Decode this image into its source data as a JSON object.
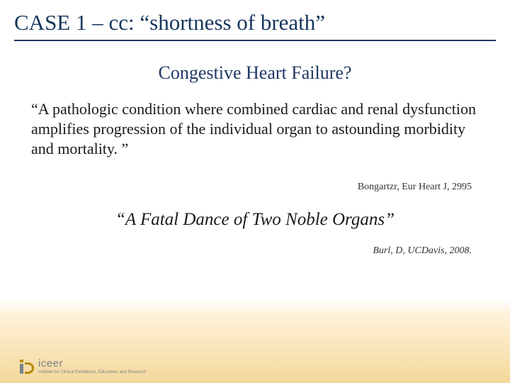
{
  "title": "CASE  1 – cc:  “shortness of breath”",
  "subtitle": "Congestive Heart Failure?",
  "quote1": "“A pathologic condition where combined cardiac and renal dysfunction amplifies progression of the individual organ to astounding morbidity and mortality. ”",
  "citation1": "Bongartzr, Eur Heart J, 2995",
  "quote2": "“A  Fatal Dance of Two Noble Organs”",
  "citation2": "Burl, D, UCDavis, 2008.",
  "logo": {
    "name": "iceer",
    "tagline": "Institute for Clinical Excellence, Education, and Research"
  },
  "colors": {
    "title_color": "#16365c",
    "underline_color": "#1f3864",
    "subtitle_color": "#1f3864",
    "body_text": "#1a1a1a",
    "citation_text": "#333333",
    "logo_gray": "#7a848a",
    "logo_gold": "#b88a00",
    "bg_top": "#ffffff",
    "bg_bottom": "#f4d89a"
  },
  "fontsize": {
    "title": 31,
    "subtitle": 26,
    "quote1": 22,
    "citation": 14,
    "quote2": 25,
    "logo_name": 15,
    "logo_tagline": 6
  }
}
